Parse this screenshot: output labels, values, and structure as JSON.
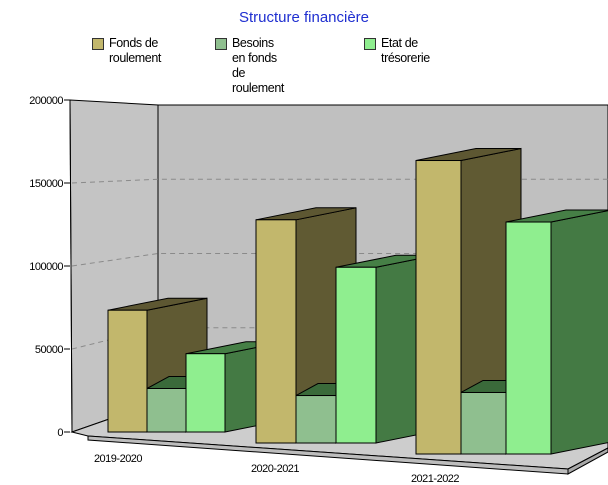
{
  "chart_data": {
    "type": "bar",
    "title": "Structure financière",
    "categories": [
      "2019-2020",
      "2020-2021",
      "2021-2022"
    ],
    "series": [
      {
        "name": "Fonds de roulement",
        "values": [
          70000,
          127000,
          167000
        ]
      },
      {
        "name": "Besoins en fonds de roulement",
        "values": [
          25000,
          27000,
          35000
        ]
      },
      {
        "name": "Etat de trésorerie",
        "values": [
          45000,
          100000,
          132000
        ]
      }
    ],
    "yticks": [
      0,
      50000,
      100000,
      150000,
      200000
    ],
    "ylim": [
      0,
      200000
    ],
    "grid": true,
    "legend_position": "top",
    "colors": {
      "series_front": [
        "#c2b76c",
        "#8fbf8f",
        "#8fee8f"
      ],
      "series_side": [
        "#605a33",
        "#3f6b3f",
        "#447a44"
      ],
      "series_top": [
        "#5d5732",
        "#3a6a3a",
        "#467f46"
      ],
      "title": "#1f2fd0",
      "wall": "#c0c0c0",
      "floor": "#c8c8c8"
    }
  },
  "legend": [
    {
      "label": "Fonds de\nroulement"
    },
    {
      "label": "Besoins en fonds\nde roulement"
    },
    {
      "label": "Etat de trésorerie"
    }
  ]
}
